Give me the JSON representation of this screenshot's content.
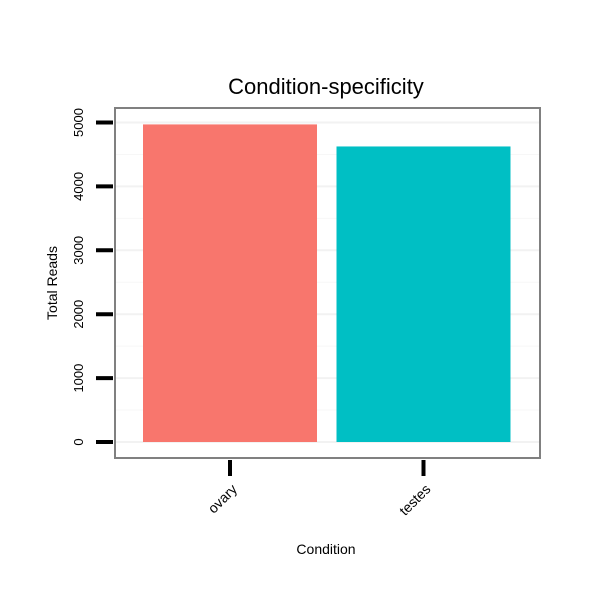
{
  "chart_data": {
    "type": "bar",
    "title": "Condition-specificity",
    "xlabel": "Condition",
    "ylabel": "Total Reads",
    "categories": [
      "ovary",
      "testes"
    ],
    "values": [
      4970,
      4625
    ],
    "colors": [
      "#F8766D",
      "#00BFC4"
    ],
    "ylim": [
      0,
      5000
    ],
    "yticks": [
      0,
      1000,
      2000,
      3000,
      4000,
      5000
    ],
    "ytick_labels": [
      "0",
      "1000",
      "2000",
      "3000",
      "4000",
      "5000"
    ],
    "grid": true,
    "legend": "none"
  }
}
